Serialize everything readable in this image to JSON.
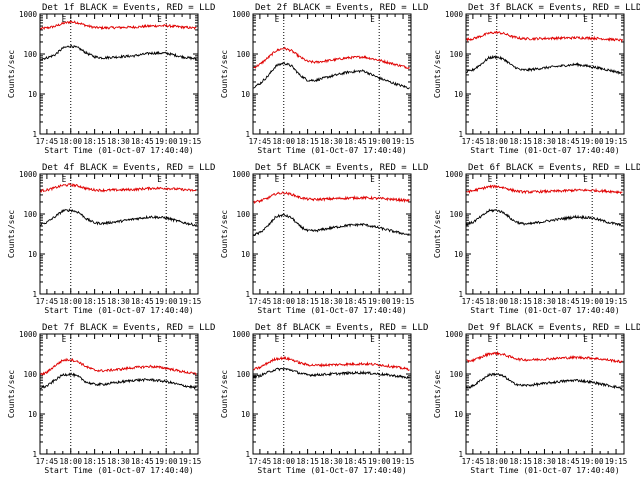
{
  "figure": {
    "colors": {
      "events": "#000000",
      "lld": "#e00000",
      "axes": "#000000",
      "background": "#ffffff"
    },
    "legend": "BLACK = Events, RED = LLD",
    "marker_labels": [
      "E",
      "E"
    ]
  },
  "chart_data": [
    {
      "type": "line",
      "title": "Det 1f BLACK = Events, RED = LLD",
      "xlabel": "Start Time (01-Oct-07 17:40:40)",
      "ylabel": "Counts/sec",
      "xticks": [
        "17:45",
        "18:00",
        "18:15",
        "18:30",
        "18:45",
        "19:00",
        "19:15"
      ],
      "xlim": [
        "17:40:40",
        "19:20:00"
      ],
      "ylim": [
        1,
        1000
      ],
      "yscale": "log",
      "yticks": [
        "1",
        "10",
        "100",
        "1000"
      ],
      "markers": [
        "18:00",
        "19:00"
      ],
      "marker_labels": [
        "E",
        "E"
      ],
      "x": [
        "17:41",
        "17:45",
        "17:50",
        "17:55",
        "18:00",
        "18:05",
        "18:10",
        "18:15",
        "18:20",
        "18:30",
        "18:40",
        "18:50",
        "19:00",
        "19:10",
        "19:19"
      ],
      "series": [
        {
          "color": "red",
          "values": [
            430,
            450,
            490,
            580,
            640,
            600,
            510,
            460,
            450,
            460,
            470,
            500,
            510,
            470,
            440
          ]
        },
        {
          "color": "black",
          "values": [
            75,
            80,
            95,
            140,
            160,
            140,
            105,
            85,
            80,
            85,
            90,
            105,
            105,
            85,
            75
          ]
        }
      ]
    },
    {
      "type": "line",
      "title": "Det 2f BLACK = Events, RED = LLD",
      "xlabel": "Start Time (01-Oct-07 17:40:40)",
      "ylabel": "Counts/sec",
      "xticks": [
        "17:45",
        "18:00",
        "18:15",
        "18:30",
        "18:45",
        "19:00",
        "19:15"
      ],
      "xlim": [
        "17:40:40",
        "19:20:00"
      ],
      "ylim": [
        1,
        1000
      ],
      "yscale": "log",
      "yticks": [
        "1",
        "10",
        "100",
        "1000"
      ],
      "markers": [
        "18:00",
        "19:00"
      ],
      "marker_labels": [
        "E",
        "E"
      ],
      "x": [
        "17:41",
        "17:45",
        "17:50",
        "17:55",
        "18:00",
        "18:05",
        "18:10",
        "18:15",
        "18:20",
        "18:30",
        "18:40",
        "18:50",
        "19:00",
        "19:10",
        "19:19"
      ],
      "series": [
        {
          "color": "red",
          "values": [
            45,
            55,
            80,
            120,
            140,
            120,
            85,
            65,
            62,
            70,
            80,
            85,
            70,
            55,
            45
          ]
        },
        {
          "color": "black",
          "values": [
            15,
            18,
            28,
            50,
            60,
            50,
            30,
            22,
            22,
            28,
            35,
            38,
            25,
            18,
            14
          ]
        }
      ]
    },
    {
      "type": "line",
      "title": "Det 3f BLACK = Events, RED = LLD",
      "xlabel": "Start Time (01-Oct-07 17:40:40)",
      "ylabel": "Counts/sec",
      "xticks": [
        "17:45",
        "18:00",
        "18:15",
        "18:30",
        "18:45",
        "19:00",
        "19:15"
      ],
      "xlim": [
        "17:40:40",
        "19:20:00"
      ],
      "ylim": [
        1,
        1000
      ],
      "yscale": "log",
      "yticks": [
        "1",
        "10",
        "100",
        "1000"
      ],
      "markers": [
        "18:00",
        "19:00"
      ],
      "marker_labels": [
        "E",
        "E"
      ],
      "x": [
        "17:41",
        "17:45",
        "17:50",
        "17:55",
        "18:00",
        "18:05",
        "18:10",
        "18:15",
        "18:20",
        "18:30",
        "18:40",
        "18:50",
        "19:00",
        "19:10",
        "19:19"
      ],
      "series": [
        {
          "color": "red",
          "values": [
            230,
            240,
            280,
            330,
            350,
            320,
            270,
            245,
            240,
            245,
            250,
            255,
            250,
            235,
            220
          ]
        },
        {
          "color": "black",
          "values": [
            35,
            40,
            55,
            80,
            85,
            72,
            50,
            40,
            40,
            45,
            50,
            55,
            48,
            40,
            33
          ]
        }
      ]
    },
    {
      "type": "line",
      "title": "Det 4f BLACK = Events, RED = LLD",
      "xlabel": "Start Time (01-Oct-07 17:40:40)",
      "ylabel": "Counts/sec",
      "xticks": [
        "17:45",
        "18:00",
        "18:15",
        "18:30",
        "18:45",
        "19:00",
        "19:15"
      ],
      "xlim": [
        "17:40:40",
        "19:20:00"
      ],
      "ylim": [
        1,
        1000
      ],
      "yscale": "log",
      "yticks": [
        "1",
        "10",
        "100",
        "1000"
      ],
      "markers": [
        "18:00",
        "19:00"
      ],
      "marker_labels": [
        "E",
        "E"
      ],
      "x": [
        "17:41",
        "17:45",
        "17:50",
        "17:55",
        "18:00",
        "18:05",
        "18:10",
        "18:15",
        "18:20",
        "18:30",
        "18:40",
        "18:50",
        "19:00",
        "19:10",
        "19:19"
      ],
      "series": [
        {
          "color": "red",
          "values": [
            380,
            400,
            450,
            520,
            540,
            500,
            430,
            400,
            390,
            400,
            410,
            440,
            440,
            410,
            380
          ]
        },
        {
          "color": "black",
          "values": [
            55,
            62,
            85,
            120,
            125,
            110,
            75,
            60,
            58,
            65,
            75,
            85,
            80,
            62,
            52
          ]
        }
      ]
    },
    {
      "type": "line",
      "title": "Det 5f BLACK = Events, RED = LLD",
      "xlabel": "Start Time (01-Oct-07 17:40:40)",
      "ylabel": "Counts/sec",
      "xticks": [
        "17:45",
        "18:00",
        "18:15",
        "18:30",
        "18:45",
        "19:00",
        "19:15"
      ],
      "xlim": [
        "17:40:40",
        "19:20:00"
      ],
      "ylim": [
        1,
        1000
      ],
      "yscale": "log",
      "yticks": [
        "1",
        "10",
        "100",
        "1000"
      ],
      "markers": [
        "18:00",
        "19:00"
      ],
      "marker_labels": [
        "E",
        "E"
      ],
      "x": [
        "17:41",
        "17:45",
        "17:50",
        "17:55",
        "18:00",
        "18:05",
        "18:10",
        "18:15",
        "18:20",
        "18:30",
        "18:40",
        "18:50",
        "19:00",
        "19:10",
        "19:19"
      ],
      "series": [
        {
          "color": "red",
          "values": [
            200,
            210,
            250,
            320,
            340,
            310,
            260,
            235,
            230,
            240,
            250,
            255,
            245,
            230,
            215
          ]
        },
        {
          "color": "black",
          "values": [
            30,
            34,
            50,
            85,
            95,
            80,
            50,
            38,
            38,
            45,
            52,
            55,
            45,
            36,
            30
          ]
        }
      ]
    },
    {
      "type": "line",
      "title": "Det 6f BLACK = Events, RED = LLD",
      "xlabel": "Start Time (01-Oct-07 17:40:40)",
      "ylabel": "Counts/sec",
      "xticks": [
        "17:45",
        "18:00",
        "18:15",
        "18:30",
        "18:45",
        "19:00",
        "19:15"
      ],
      "xlim": [
        "17:40:40",
        "19:20:00"
      ],
      "ylim": [
        1,
        1000
      ],
      "yscale": "log",
      "yticks": [
        "1",
        "10",
        "100",
        "1000"
      ],
      "markers": [
        "18:00",
        "19:00"
      ],
      "marker_labels": [
        "E",
        "E"
      ],
      "x": [
        "17:41",
        "17:45",
        "17:50",
        "17:55",
        "18:00",
        "18:05",
        "18:10",
        "18:15",
        "18:20",
        "18:30",
        "18:40",
        "18:50",
        "19:00",
        "19:10",
        "19:19"
      ],
      "series": [
        {
          "color": "red",
          "values": [
            360,
            380,
            430,
            480,
            490,
            450,
            390,
            360,
            355,
            365,
            375,
            395,
            390,
            370,
            350
          ]
        },
        {
          "color": "black",
          "values": [
            55,
            62,
            85,
            120,
            125,
            105,
            70,
            58,
            56,
            65,
            75,
            85,
            80,
            62,
            52
          ]
        }
      ]
    },
    {
      "type": "line",
      "title": "Det 7f BLACK = Events, RED = LLD",
      "xlabel": "Start Time (01-Oct-07 17:40:40)",
      "ylabel": "Counts/sec",
      "xticks": [
        "17:45",
        "18:00",
        "18:15",
        "18:30",
        "18:45",
        "19:00",
        "19:15"
      ],
      "xlim": [
        "17:40:40",
        "19:20:00"
      ],
      "ylim": [
        1,
        1000
      ],
      "yscale": "log",
      "yticks": [
        "1",
        "10",
        "100",
        "1000"
      ],
      "markers": [
        "18:00",
        "19:00"
      ],
      "marker_labels": [
        "E",
        "E"
      ],
      "x": [
        "17:41",
        "17:45",
        "17:50",
        "17:55",
        "18:00",
        "18:05",
        "18:10",
        "18:15",
        "18:20",
        "18:30",
        "18:40",
        "18:50",
        "19:00",
        "19:10",
        "19:19"
      ],
      "series": [
        {
          "color": "red",
          "values": [
            95,
            110,
            160,
            220,
            230,
            200,
            150,
            125,
            120,
            130,
            145,
            155,
            140,
            115,
            100
          ]
        },
        {
          "color": "black",
          "values": [
            45,
            50,
            70,
            95,
            100,
            85,
            62,
            55,
            55,
            62,
            70,
            72,
            65,
            52,
            45
          ]
        }
      ]
    },
    {
      "type": "line",
      "title": "Det 8f BLACK = Events, RED = LLD",
      "xlabel": "Start Time (01-Oct-07 17:40:40)",
      "ylabel": "Counts/sec",
      "xticks": [
        "17:45",
        "18:00",
        "18:15",
        "18:30",
        "18:45",
        "19:00",
        "19:15"
      ],
      "xlim": [
        "17:40:40",
        "19:20:00"
      ],
      "ylim": [
        1,
        1000
      ],
      "yscale": "log",
      "yticks": [
        "1",
        "10",
        "100",
        "1000"
      ],
      "markers": [
        "18:00",
        "19:00"
      ],
      "marker_labels": [
        "E",
        "E"
      ],
      "x": [
        "17:41",
        "17:45",
        "17:50",
        "17:55",
        "18:00",
        "18:05",
        "18:10",
        "18:15",
        "18:20",
        "18:30",
        "18:40",
        "18:50",
        "19:00",
        "19:10",
        "19:19"
      ],
      "series": [
        {
          "color": "red",
          "values": [
            130,
            145,
            190,
            240,
            250,
            230,
            190,
            170,
            165,
            170,
            175,
            180,
            170,
            150,
            130
          ]
        },
        {
          "color": "black",
          "values": [
            85,
            90,
            110,
            130,
            135,
            125,
            105,
            95,
            95,
            100,
            105,
            108,
            100,
            90,
            80
          ]
        }
      ]
    },
    {
      "type": "line",
      "title": "Det 9f BLACK = Events, RED = LLD",
      "xlabel": "Start Time (01-Oct-07 17:40:40)",
      "ylabel": "Counts/sec",
      "xticks": [
        "17:45",
        "18:00",
        "18:15",
        "18:30",
        "18:45",
        "19:00",
        "19:15"
      ],
      "xlim": [
        "17:40:40",
        "19:20:00"
      ],
      "ylim": [
        1,
        1000
      ],
      "yscale": "log",
      "yticks": [
        "1",
        "10",
        "100",
        "1000"
      ],
      "markers": [
        "18:00",
        "19:00"
      ],
      "marker_labels": [
        "E",
        "E"
      ],
      "x": [
        "17:41",
        "17:45",
        "17:50",
        "17:55",
        "18:00",
        "18:05",
        "18:10",
        "18:15",
        "18:20",
        "18:30",
        "18:40",
        "18:50",
        "19:00",
        "19:10",
        "19:19"
      ],
      "series": [
        {
          "color": "red",
          "values": [
            210,
            220,
            260,
            320,
            330,
            300,
            255,
            230,
            225,
            235,
            250,
            260,
            250,
            225,
            200
          ]
        },
        {
          "color": "black",
          "values": [
            45,
            50,
            70,
            95,
            100,
            85,
            60,
            52,
            52,
            58,
            65,
            70,
            62,
            52,
            44
          ]
        }
      ]
    }
  ]
}
